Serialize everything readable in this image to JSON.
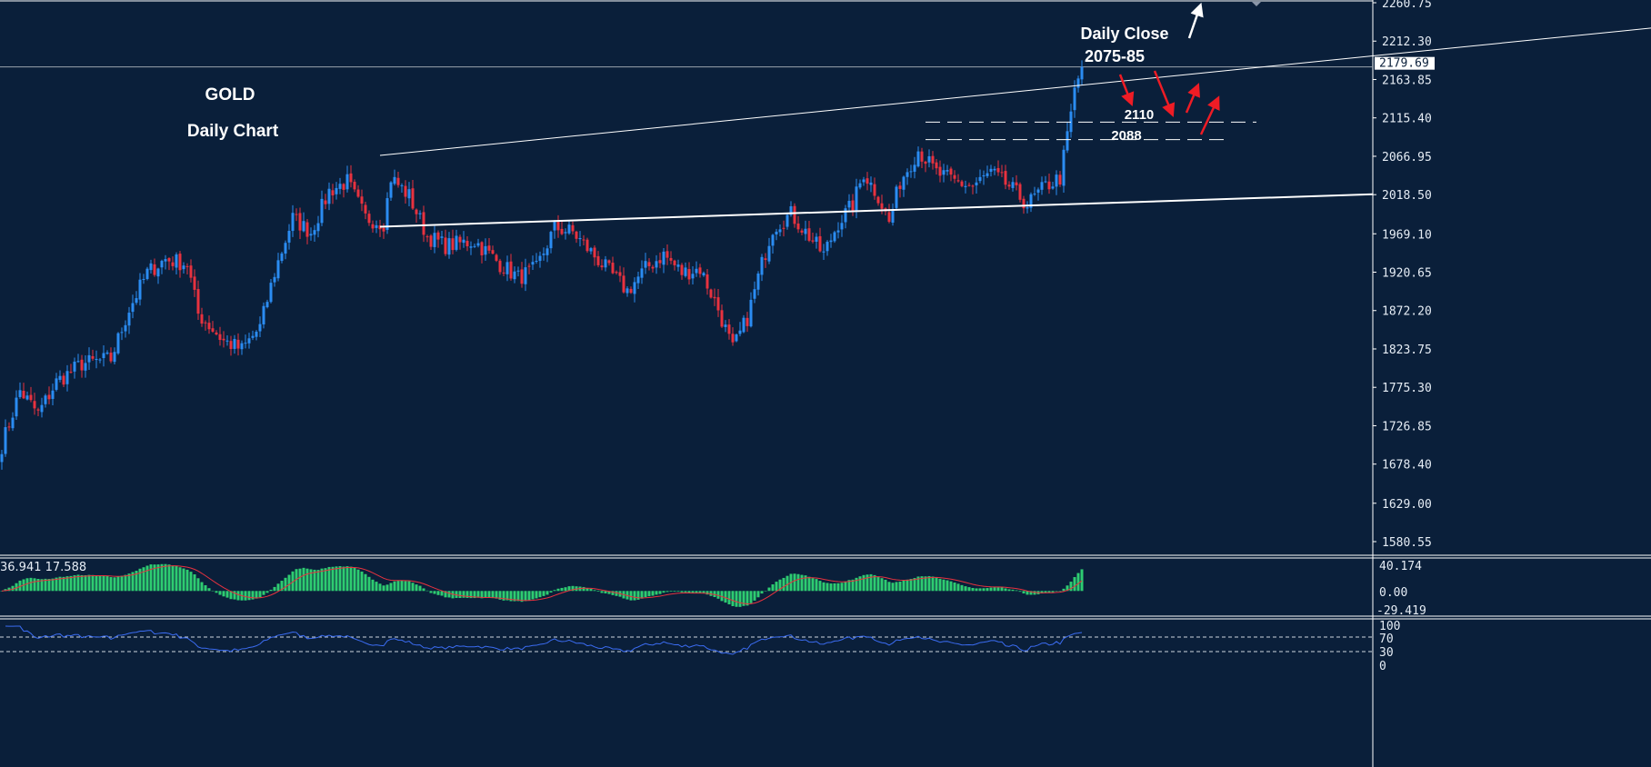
{
  "chart_data": {
    "type": "candlestick",
    "title": "GOLD",
    "subtitle": "Daily Chart",
    "symbol": "GOLD",
    "timeframe": "Daily",
    "ylim": [
      1580.55,
      2260.75
    ],
    "y_ticks": [
      "2260.75",
      "2212.30",
      "2163.85",
      "2115.40",
      "2066.95",
      "2018.50",
      "1969.10",
      "1920.65",
      "1872.20",
      "1823.75",
      "1775.30",
      "1726.85",
      "1678.40",
      "1629.00",
      "1580.55"
    ],
    "last_price": "2179.69",
    "bar_count": 298,
    "close_waypoints": [
      [
        0,
        1702
      ],
      [
        5,
        1771
      ],
      [
        10,
        1742
      ],
      [
        15,
        1782
      ],
      [
        22,
        1805
      ],
      [
        30,
        1811
      ],
      [
        35,
        1874
      ],
      [
        40,
        1920
      ],
      [
        45,
        1937
      ],
      [
        51,
        1931
      ],
      [
        54,
        1868
      ],
      [
        61,
        1834
      ],
      [
        66,
        1823
      ],
      [
        71,
        1851
      ],
      [
        75,
        1920
      ],
      [
        80,
        1989
      ],
      [
        85,
        1971
      ],
      [
        90,
        2023
      ],
      [
        95,
        2035
      ],
      [
        100,
        1989
      ],
      [
        105,
        1983
      ],
      [
        107,
        2040
      ],
      [
        112,
        2017
      ],
      [
        117,
        1966
      ],
      [
        122,
        1954
      ],
      [
        130,
        1960
      ],
      [
        137,
        1931
      ],
      [
        142,
        1914
      ],
      [
        147,
        1925
      ],
      [
        152,
        1977
      ],
      [
        157,
        1971
      ],
      [
        165,
        1931
      ],
      [
        172,
        1897
      ],
      [
        177,
        1925
      ],
      [
        182,
        1943
      ],
      [
        187,
        1920
      ],
      [
        192,
        1925
      ],
      [
        197,
        1874
      ],
      [
        201,
        1823
      ],
      [
        205,
        1863
      ],
      [
        209,
        1931
      ],
      [
        212,
        1977
      ],
      [
        217,
        1994
      ],
      [
        222,
        1966
      ],
      [
        226,
        1943
      ],
      [
        230,
        1983
      ],
      [
        234,
        2006
      ],
      [
        237,
        2046
      ],
      [
        241,
        2017
      ],
      [
        244,
        1983
      ],
      [
        247,
        2035
      ],
      [
        252,
        2075
      ],
      [
        257,
        2046
      ],
      [
        262,
        2035
      ],
      [
        267,
        2029
      ],
      [
        272,
        2046
      ],
      [
        277,
        2029
      ],
      [
        282,
        2006
      ],
      [
        287,
        2029
      ],
      [
        291,
        2040
      ],
      [
        293,
        2092
      ],
      [
        295,
        2149
      ],
      [
        297,
        2179.69
      ]
    ],
    "trendlines": [
      {
        "name": "upper-resistance",
        "from": [
          104,
          2068
        ],
        "to": [
          454,
          2229
        ]
      },
      {
        "name": "lower-support",
        "from": [
          104,
          1978
        ],
        "to": [
          377,
          2019
        ]
      }
    ],
    "levels": [
      {
        "label": "2110",
        "price": 2110,
        "from_bar": 254,
        "to_bar": 345
      },
      {
        "label": "2088",
        "price": 2088,
        "from_bar": 254,
        "to_bar": 336
      }
    ],
    "annotations": {
      "title": "GOLD",
      "subtitle": "Daily Chart",
      "daily_close_label": "Daily Close",
      "daily_close_range": "2075-85"
    },
    "macd": {
      "readout": "36.941 17.588",
      "y_ticks": [
        "40.174",
        "0.00",
        "-29.419"
      ],
      "ylim": [
        -29.419,
        40.174
      ]
    },
    "rsi": {
      "y_ticks": [
        "100",
        "70",
        "30",
        "0"
      ],
      "levels": [
        70,
        30
      ],
      "ylim": [
        0,
        100
      ]
    },
    "colors": {
      "background": "#0a1f3a",
      "bull": "#2b8cf2",
      "bear": "#e8323f",
      "macd_hist": "#2ecc71",
      "macd_signal": "#e8323f",
      "rsi_line": "#3b6cf2",
      "arrow_red": "#ee1c25",
      "arrow_white": "#ffffff"
    }
  }
}
